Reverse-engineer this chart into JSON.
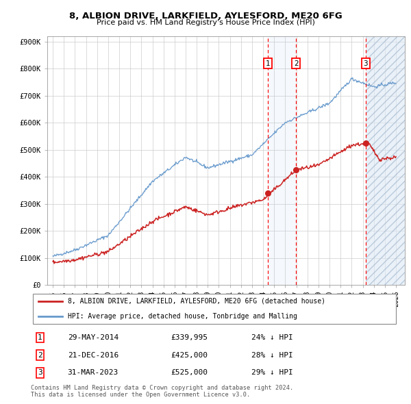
{
  "title1": "8, ALBION DRIVE, LARKFIELD, AYLESFORD, ME20 6FG",
  "title2": "Price paid vs. HM Land Registry's House Price Index (HPI)",
  "ylabel_ticks": [
    "£0",
    "£100K",
    "£200K",
    "£300K",
    "£400K",
    "£500K",
    "£600K",
    "£700K",
    "£800K",
    "£900K"
  ],
  "ytick_vals": [
    0,
    100000,
    200000,
    300000,
    400000,
    500000,
    600000,
    700000,
    800000,
    900000
  ],
  "ylim": [
    0,
    920000
  ],
  "xlim_start": 1994.5,
  "xlim_end": 2026.8,
  "hpi_color": "#6699cc",
  "price_color": "#cc2222",
  "transactions": [
    {
      "label": "1",
      "date_num": 2014.41,
      "price": 339995,
      "date_str": "29-MAY-2014",
      "pct": "24%"
    },
    {
      "label": "2",
      "date_num": 2016.97,
      "price": 425000,
      "date_str": "21-DEC-2016",
      "pct": "28%"
    },
    {
      "label": "3",
      "date_num": 2023.25,
      "price": 525000,
      "date_str": "31-MAR-2023",
      "pct": "29%"
    }
  ],
  "legend_label_red": "8, ALBION DRIVE, LARKFIELD, AYLESFORD, ME20 6FG (detached house)",
  "legend_label_blue": "HPI: Average price, detached house, Tonbridge and Malling",
  "footer1": "Contains HM Land Registry data © Crown copyright and database right 2024.",
  "footer2": "This data is licensed under the Open Government Licence v3.0."
}
